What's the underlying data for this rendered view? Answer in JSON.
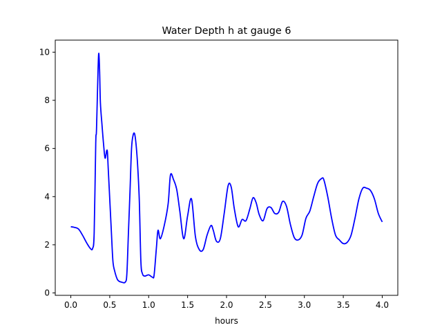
{
  "chart_data": {
    "type": "line",
    "title": "Water Depth h at gauge 6",
    "xlabel": "hours",
    "ylabel": "",
    "xlim": [
      -0.2,
      4.2
    ],
    "ylim": [
      -0.1,
      10.5
    ],
    "grid": false,
    "xticks": [
      0.0,
      0.5,
      1.0,
      1.5,
      2.0,
      2.5,
      3.0,
      3.5,
      4.0
    ],
    "xtick_labels": [
      "0.0",
      "0.5",
      "1.0",
      "1.5",
      "2.0",
      "2.5",
      "3.0",
      "3.5",
      "4.0"
    ],
    "yticks": [
      0,
      2,
      4,
      6,
      8,
      10
    ],
    "ytick_labels": [
      "0",
      "2",
      "4",
      "6",
      "8",
      "10"
    ],
    "series": [
      {
        "color": "#0000ff",
        "x": [
          0.0,
          0.05,
          0.1,
          0.15,
          0.2,
          0.25,
          0.28,
          0.3,
          0.32,
          0.33,
          0.35,
          0.36,
          0.37,
          0.38,
          0.4,
          0.42,
          0.44,
          0.46,
          0.47,
          0.48,
          0.5,
          0.52,
          0.54,
          0.56,
          0.6,
          0.65,
          0.7,
          0.72,
          0.74,
          0.76,
          0.78,
          0.8,
          0.82,
          0.84,
          0.86,
          0.88,
          0.9,
          0.92,
          0.95,
          1.0,
          1.05,
          1.07,
          1.1,
          1.12,
          1.15,
          1.2,
          1.25,
          1.28,
          1.32,
          1.36,
          1.4,
          1.45,
          1.5,
          1.55,
          1.6,
          1.65,
          1.7,
          1.75,
          1.8,
          1.83,
          1.87,
          1.92,
          1.97,
          2.02,
          2.06,
          2.1,
          2.15,
          2.2,
          2.25,
          2.3,
          2.34,
          2.38,
          2.42,
          2.47,
          2.52,
          2.57,
          2.62,
          2.67,
          2.72,
          2.77,
          2.82,
          2.87,
          2.92,
          2.97,
          3.02,
          3.07,
          3.12,
          3.17,
          3.22,
          3.25,
          3.3,
          3.35,
          3.4,
          3.45,
          3.5,
          3.55,
          3.6,
          3.65,
          3.7,
          3.75,
          3.8,
          3.85,
          3.9,
          3.95,
          4.0
        ],
        "y": [
          2.75,
          2.72,
          2.65,
          2.4,
          2.1,
          1.85,
          1.85,
          2.5,
          6.2,
          6.8,
          9.3,
          9.95,
          9.2,
          7.9,
          7.0,
          6.2,
          5.6,
          5.9,
          5.85,
          5.2,
          3.9,
          2.6,
          1.35,
          0.95,
          0.55,
          0.45,
          0.45,
          0.8,
          2.5,
          4.2,
          6.0,
          6.55,
          6.6,
          6.1,
          5.2,
          3.8,
          1.3,
          0.8,
          0.7,
          0.75,
          0.65,
          0.75,
          1.9,
          2.6,
          2.25,
          2.8,
          3.7,
          4.9,
          4.7,
          4.3,
          3.4,
          2.25,
          3.2,
          3.9,
          2.35,
          1.8,
          1.8,
          2.4,
          2.8,
          2.6,
          2.15,
          2.25,
          3.3,
          4.45,
          4.4,
          3.5,
          2.75,
          3.05,
          3.0,
          3.5,
          3.95,
          3.75,
          3.25,
          3.0,
          3.5,
          3.55,
          3.3,
          3.35,
          3.8,
          3.6,
          2.85,
          2.3,
          2.2,
          2.4,
          3.1,
          3.4,
          4.0,
          4.55,
          4.75,
          4.7,
          4.0,
          3.1,
          2.4,
          2.2,
          2.05,
          2.1,
          2.4,
          3.1,
          3.9,
          4.35,
          4.35,
          4.25,
          3.9,
          3.3,
          2.95
        ]
      }
    ]
  }
}
